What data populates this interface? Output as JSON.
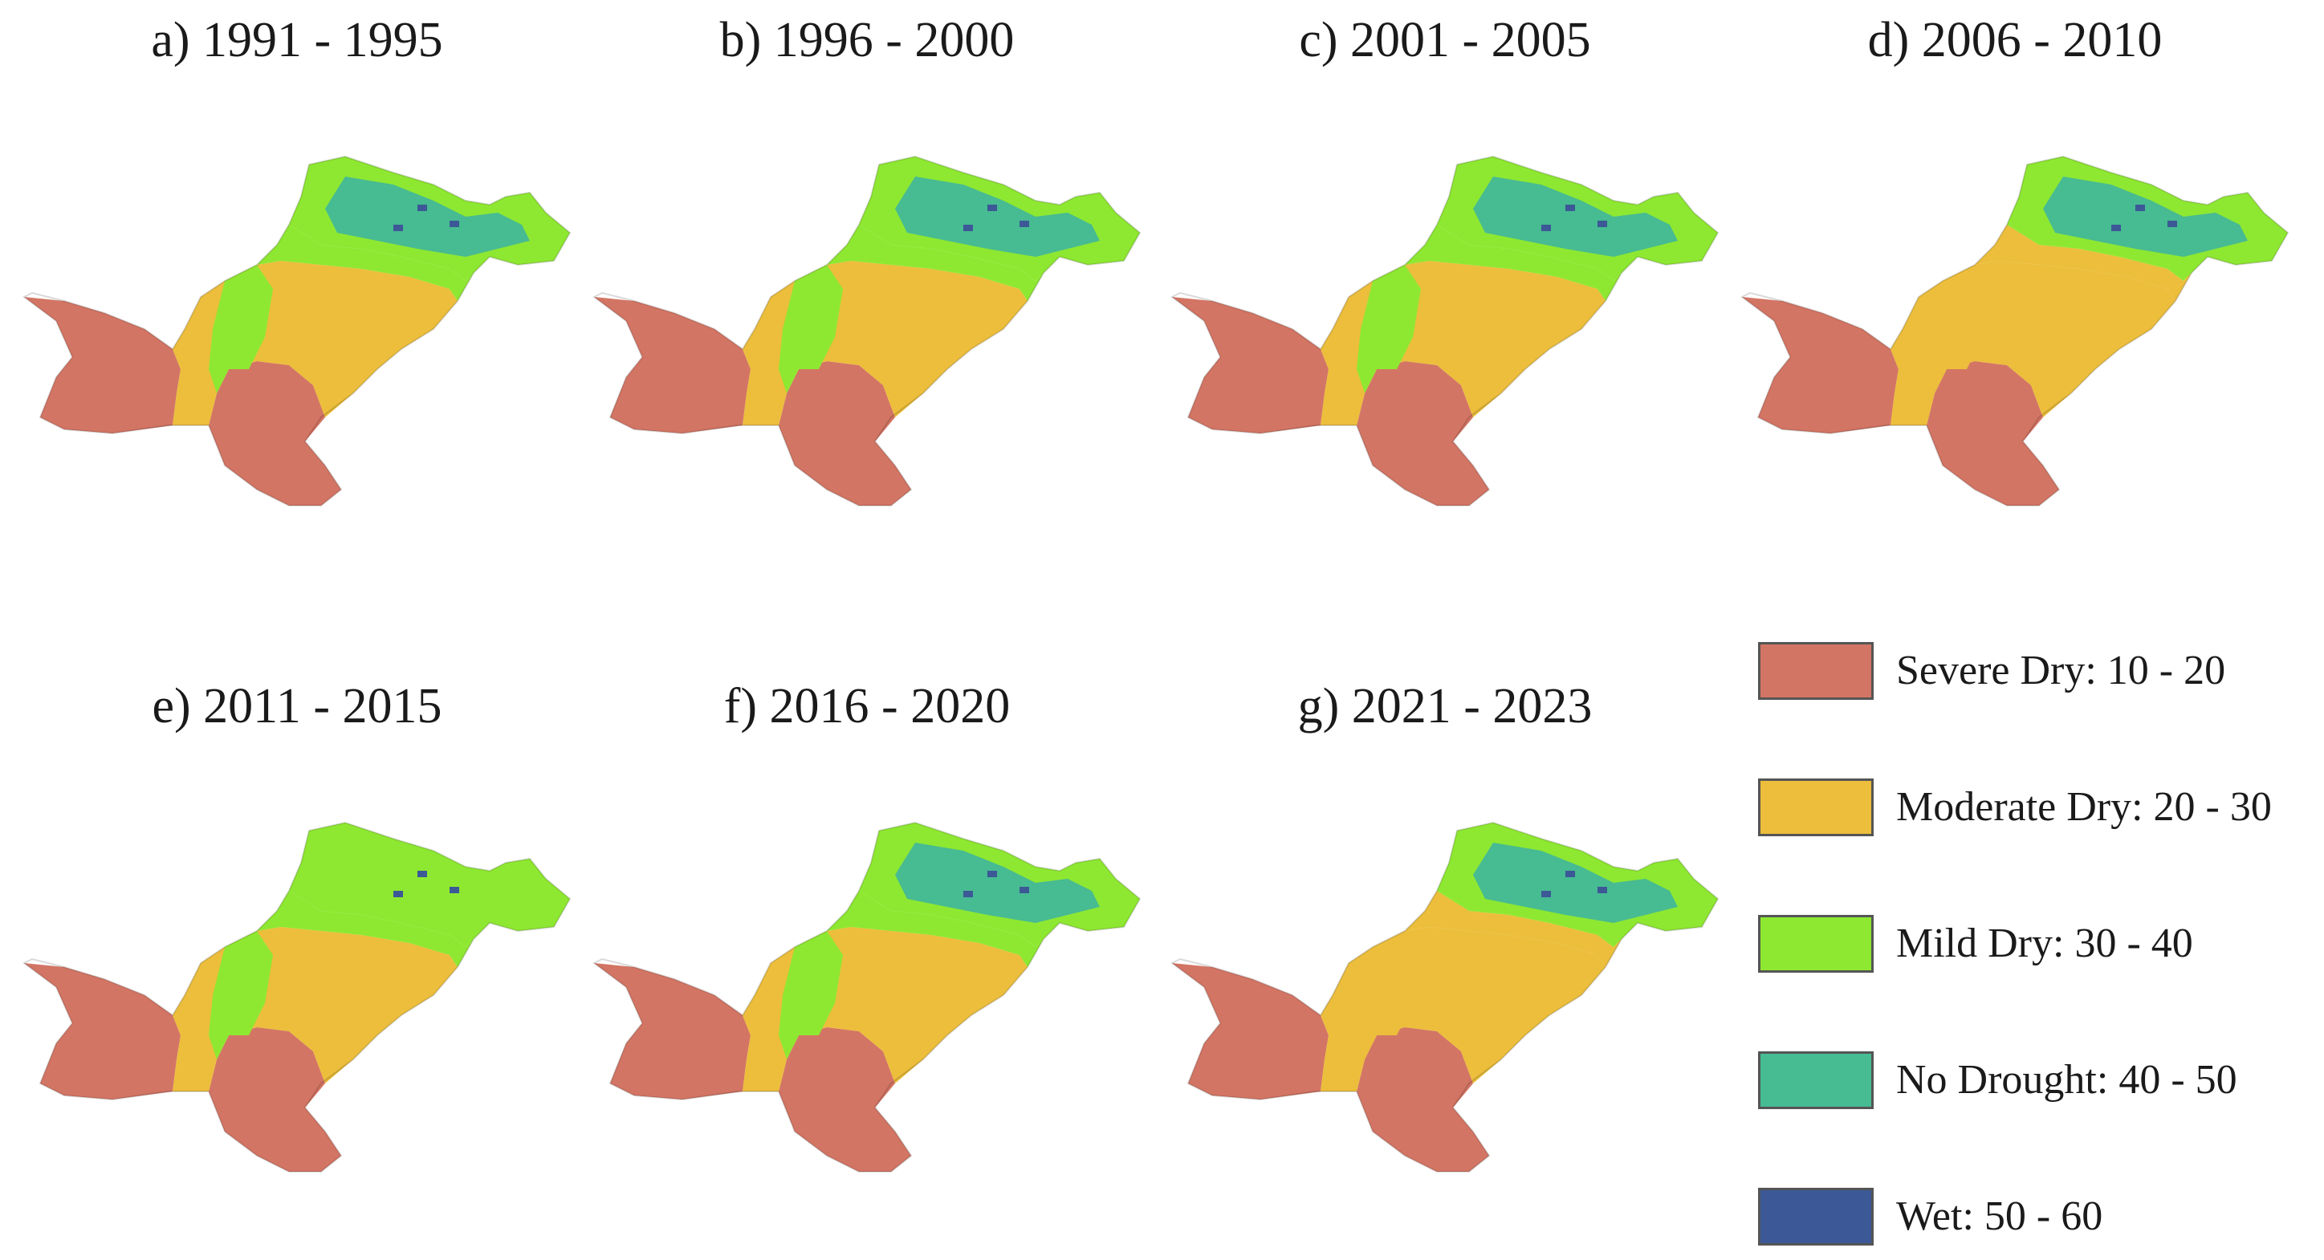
{
  "legend": {
    "items": [
      {
        "label": "Severe Dry: 10 - 20",
        "color": "#d37564"
      },
      {
        "label": "Moderate Dry: 20 - 30",
        "color": "#ecbe3c"
      },
      {
        "label": "Mild Dry: 30 - 40",
        "color": "#8ee831"
      },
      {
        "label": "No Drought: 40 - 50",
        "color": "#47bb92"
      },
      {
        "label": "Wet: 50 - 60",
        "color": "#3c5896"
      }
    ]
  },
  "panels": [
    {
      "label": "a) 1991 - 1995"
    },
    {
      "label": "b) 1996 - 2000"
    },
    {
      "label": "c) 2001 - 2005"
    },
    {
      "label": "d) 2006 - 2010"
    },
    {
      "label": "e) 2011 - 2015"
    },
    {
      "label": "f) 2016 - 2020"
    },
    {
      "label": "g) 2021 - 2023"
    }
  ]
}
